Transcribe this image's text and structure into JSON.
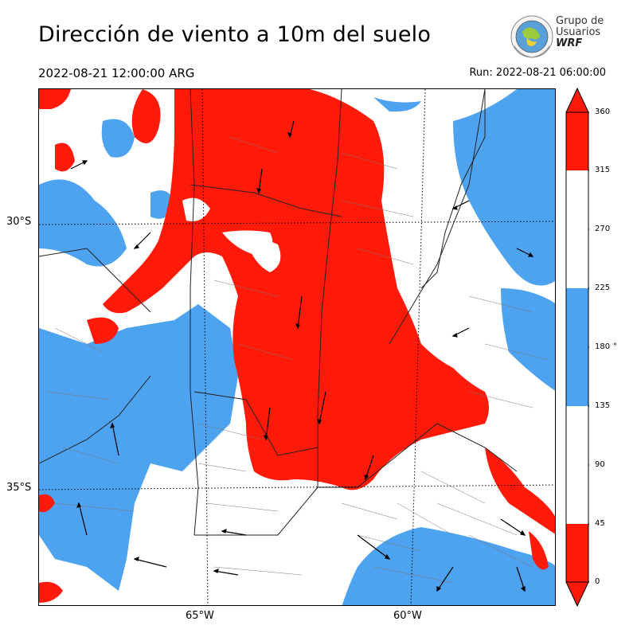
{
  "header": {
    "title": "Dirección de viento a 10m del suelo",
    "valid_time": "2022-08-21 12:00:00 ARG",
    "run_time": "Run: 2022-08-21 06:00:00"
  },
  "logo": {
    "line1": "Grupo de",
    "line2": "Usuarios",
    "line3": "WRF"
  },
  "map": {
    "lat_labels": [
      "30°S",
      "35°S"
    ],
    "lon_labels": [
      "65°W",
      "60°W"
    ]
  },
  "colorbar": {
    "ticks": [
      "360",
      "315",
      "270",
      "225",
      "180",
      "135",
      "90",
      "45",
      "0"
    ],
    "unit": "°",
    "bands": [
      {
        "from": 315,
        "to": 360,
        "color": "#ff1a0a"
      },
      {
        "from": 225,
        "to": 315,
        "color": "#ffffff"
      },
      {
        "from": 135,
        "to": 225,
        "color": "#4da3f0"
      },
      {
        "from": 45,
        "to": 135,
        "color": "#ffffff"
      },
      {
        "from": 0,
        "to": 45,
        "color": "#ff1a0a"
      }
    ]
  },
  "colors": {
    "red": "#ff1a0a",
    "blue": "#4da3f0",
    "white": "#ffffff"
  }
}
